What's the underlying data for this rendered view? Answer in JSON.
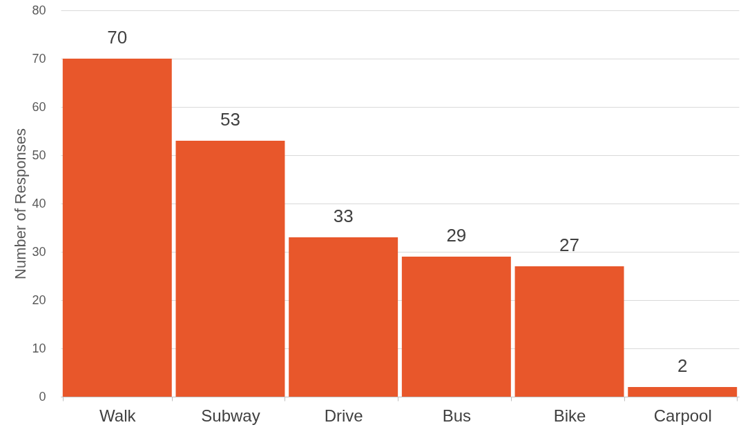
{
  "chart_data": {
    "type": "bar",
    "ylabel": "Number of Responses",
    "categories": [
      "Walk",
      "Subway",
      "Drive",
      "Bus",
      "Bike",
      "Carpool"
    ],
    "values": [
      70,
      53,
      33,
      29,
      27,
      2
    ],
    "color": "#e8572b",
    "ylim": [
      0,
      80
    ],
    "yticks": [
      0,
      10,
      20,
      30,
      40,
      50,
      60,
      70,
      80
    ],
    "grid": "y",
    "data_labels": true
  }
}
